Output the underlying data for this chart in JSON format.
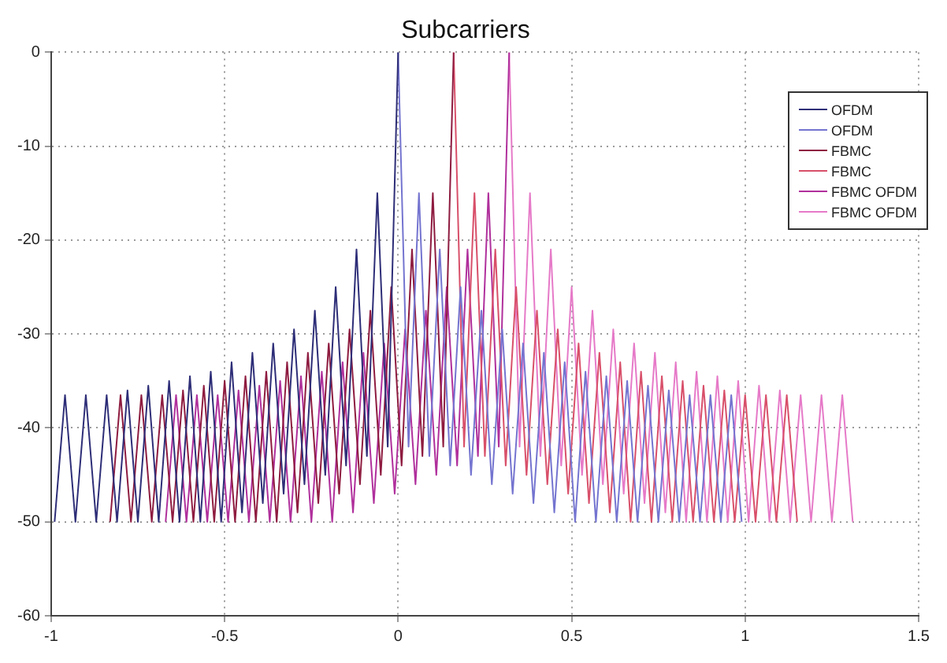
{
  "chart_data": {
    "type": "line",
    "title": "Subcarriers",
    "xlim": [
      -1,
      1.5
    ],
    "xticks": [
      -1,
      -0.5,
      0,
      0.5,
      1,
      1.5
    ],
    "ylim": [
      -60,
      0
    ],
    "yticks": [
      -60,
      -50,
      -40,
      -30,
      -20,
      -10,
      0
    ],
    "grid": true,
    "legend": "top right",
    "marker": "none",
    "line_style": "solid",
    "series": [
      {
        "name": "OFDM",
        "color": "#2e2e78",
        "x": [
          -0.99,
          -0.96,
          -0.93,
          -0.9,
          -0.87,
          -0.84,
          -0.81,
          -0.78,
          -0.75,
          -0.72,
          -0.69,
          -0.66,
          -0.63,
          -0.6,
          -0.57,
          -0.54,
          -0.51,
          -0.48,
          -0.45,
          -0.42,
          -0.39,
          -0.36,
          -0.33,
          -0.3,
          -0.27,
          -0.24,
          -0.21,
          -0.18,
          -0.15,
          -0.12,
          -0.09,
          -0.06,
          -0.03,
          0
        ],
        "values": [
          -50,
          -36.5,
          -50,
          -36.5,
          -50,
          -36.5,
          -50,
          -36,
          -50,
          -35.5,
          -50,
          -35,
          -50,
          -34.5,
          -50,
          -34,
          -50,
          -33,
          -49,
          -32,
          -48,
          -31,
          -47,
          -29.5,
          -46,
          -27.5,
          -45,
          -25,
          -44,
          -21,
          -43,
          -15,
          -42,
          0
        ]
      },
      {
        "name": "OFDM",
        "color": "#7474d0",
        "x": [
          0,
          0.03,
          0.06,
          0.09,
          0.12,
          0.15,
          0.18,
          0.21,
          0.24,
          0.27,
          0.3,
          0.33,
          0.36,
          0.39,
          0.42,
          0.45,
          0.48,
          0.51,
          0.54,
          0.57,
          0.6,
          0.63,
          0.66,
          0.69,
          0.72,
          0.75,
          0.78,
          0.81,
          0.84,
          0.87,
          0.9,
          0.93,
          0.96,
          0.99
        ],
        "values": [
          0,
          -42,
          -15,
          -43,
          -21,
          -44,
          -25,
          -45,
          -27.5,
          -46,
          -29.5,
          -47,
          -31,
          -48,
          -32,
          -49,
          -33,
          -50,
          -34,
          -50,
          -34.5,
          -50,
          -35,
          -50,
          -35.5,
          -50,
          -36,
          -50,
          -36.5,
          -50,
          -36.5,
          -50,
          -36.5,
          -50
        ]
      },
      {
        "name": "FBMC",
        "color": "#8e1c40",
        "x": [
          -0.83,
          -0.8,
          -0.77,
          -0.74,
          -0.71,
          -0.68,
          -0.65,
          -0.62,
          -0.59,
          -0.56,
          -0.53,
          -0.5,
          -0.47,
          -0.44,
          -0.41,
          -0.38,
          -0.35,
          -0.32,
          -0.29,
          -0.26,
          -0.23,
          -0.2,
          -0.17,
          -0.14,
          -0.11,
          -0.08,
          -0.05,
          -0.02,
          0.01,
          0.04,
          0.07,
          0.1,
          0.13,
          0.16
        ],
        "values": [
          -50,
          -36.5,
          -50,
          -36.5,
          -50,
          -36.5,
          -50,
          -36,
          -50,
          -35.5,
          -50,
          -35,
          -50,
          -34.5,
          -50,
          -34,
          -50,
          -33,
          -49,
          -32,
          -48,
          -31,
          -47,
          -29.5,
          -46,
          -27.5,
          -45,
          -25,
          -44,
          -21,
          -43,
          -15,
          -42,
          0
        ]
      },
      {
        "name": "FBMC",
        "color": "#d8506a",
        "x": [
          0.16,
          0.19,
          0.22,
          0.25,
          0.28,
          0.31,
          0.34,
          0.37,
          0.4,
          0.43,
          0.46,
          0.49,
          0.52,
          0.55,
          0.58,
          0.61,
          0.64,
          0.67,
          0.7,
          0.73,
          0.76,
          0.79,
          0.82,
          0.85,
          0.88,
          0.91,
          0.94,
          0.97,
          1,
          1.03,
          1.06,
          1.09,
          1.12,
          1.15
        ],
        "values": [
          0,
          -42,
          -15,
          -43,
          -21,
          -44,
          -25,
          -45,
          -27.5,
          -46,
          -29.5,
          -47,
          -31,
          -48,
          -32,
          -49,
          -33,
          -50,
          -34,
          -50,
          -34.5,
          -50,
          -35,
          -50,
          -35.5,
          -50,
          -36,
          -50,
          -36.5,
          -50,
          -36.5,
          -50,
          -36.5,
          -50
        ]
      },
      {
        "name": "FBMC OFDM",
        "color": "#b0309c",
        "x": [
          -0.67,
          -0.64,
          -0.61,
          -0.58,
          -0.55,
          -0.52,
          -0.49,
          -0.46,
          -0.43,
          -0.4,
          -0.37,
          -0.34,
          -0.31,
          -0.28,
          -0.25,
          -0.22,
          -0.19,
          -0.16,
          -0.13,
          -0.1,
          -0.07,
          -0.04,
          -0.01,
          0.02,
          0.05,
          0.08,
          0.11,
          0.14,
          0.17,
          0.2,
          0.23,
          0.26,
          0.29,
          0.32
        ],
        "values": [
          -50,
          -36.5,
          -50,
          -36.5,
          -50,
          -36.5,
          -50,
          -36,
          -50,
          -35.5,
          -50,
          -35,
          -50,
          -34.5,
          -50,
          -34,
          -50,
          -33,
          -49,
          -32,
          -48,
          -31,
          -47,
          -29.5,
          -46,
          -27.5,
          -45,
          -25,
          -44,
          -21,
          -43,
          -15,
          -42,
          0
        ]
      },
      {
        "name": "FBMC OFDM",
        "color": "#e67ac8",
        "x": [
          0.32,
          0.35,
          0.38,
          0.41,
          0.44,
          0.47,
          0.5,
          0.53,
          0.56,
          0.59,
          0.62,
          0.65,
          0.68,
          0.71,
          0.74,
          0.77,
          0.8,
          0.83,
          0.86,
          0.89,
          0.92,
          0.95,
          0.98,
          1.01,
          1.04,
          1.07,
          1.1,
          1.13,
          1.16,
          1.19,
          1.22,
          1.25,
          1.28,
          1.31
        ],
        "values": [
          0,
          -42,
          -15,
          -43,
          -21,
          -44,
          -25,
          -45,
          -27.5,
          -46,
          -29.5,
          -47,
          -31,
          -48,
          -32,
          -49,
          -33,
          -50,
          -34,
          -50,
          -34.5,
          -50,
          -35,
          -50,
          -35.5,
          -50,
          -36,
          -50,
          -36.5,
          -50,
          -36.5,
          -50,
          -36.5,
          -50
        ]
      }
    ]
  }
}
